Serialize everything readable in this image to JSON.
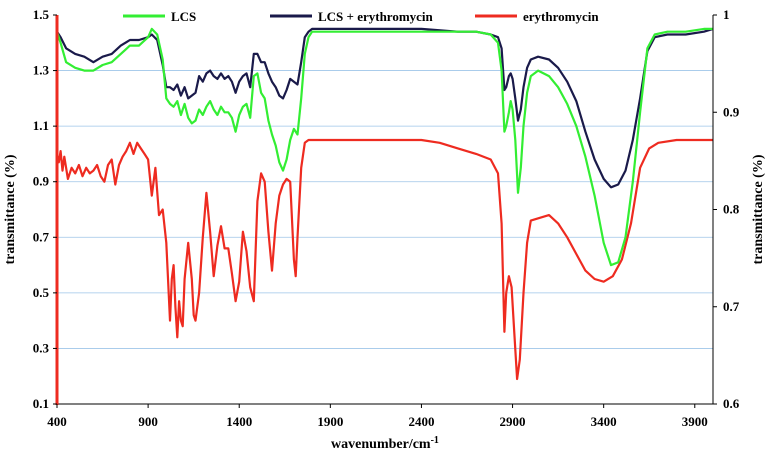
{
  "chart_data": {
    "type": "line",
    "xlabel": "wavenumber/cm",
    "xlabel_sup": "-1",
    "ylabel_left": "transmittance (%)",
    "ylabel_right": "transmittance (%)",
    "xlim": [
      400,
      4000
    ],
    "ylim_left": [
      0.1,
      1.5
    ],
    "ylim_right": [
      0.6,
      1.0
    ],
    "x_ticks": [
      "400",
      "900",
      "1400",
      "1900",
      "2400",
      "2900",
      "3400",
      "3900"
    ],
    "y_left_ticks": [
      "1.5",
      "1.3",
      "1.1",
      "0.9",
      "0.7",
      "0.5",
      "0.3",
      "0.1"
    ],
    "y_right_ticks": [
      "1",
      "0.9",
      "0.8",
      "0.7",
      "0.6"
    ],
    "grid": "horizontal",
    "legend_position": "top",
    "series": [
      {
        "name": "LCS",
        "color": "#33ee33",
        "axis": "left",
        "points": [
          [
            400,
            1.44
          ],
          [
            420,
            1.4
          ],
          [
            450,
            1.33
          ],
          [
            500,
            1.31
          ],
          [
            550,
            1.3
          ],
          [
            600,
            1.3
          ],
          [
            650,
            1.32
          ],
          [
            700,
            1.33
          ],
          [
            750,
            1.36
          ],
          [
            800,
            1.39
          ],
          [
            850,
            1.39
          ],
          [
            900,
            1.42
          ],
          [
            920,
            1.45
          ],
          [
            950,
            1.43
          ],
          [
            980,
            1.34
          ],
          [
            1000,
            1.2
          ],
          [
            1020,
            1.18
          ],
          [
            1040,
            1.17
          ],
          [
            1060,
            1.19
          ],
          [
            1080,
            1.14
          ],
          [
            1100,
            1.18
          ],
          [
            1120,
            1.13
          ],
          [
            1140,
            1.11
          ],
          [
            1160,
            1.12
          ],
          [
            1180,
            1.16
          ],
          [
            1200,
            1.14
          ],
          [
            1220,
            1.17
          ],
          [
            1240,
            1.19
          ],
          [
            1260,
            1.16
          ],
          [
            1280,
            1.14
          ],
          [
            1300,
            1.17
          ],
          [
            1320,
            1.15
          ],
          [
            1340,
            1.15
          ],
          [
            1360,
            1.13
          ],
          [
            1380,
            1.08
          ],
          [
            1400,
            1.14
          ],
          [
            1420,
            1.17
          ],
          [
            1440,
            1.18
          ],
          [
            1460,
            1.13
          ],
          [
            1480,
            1.28
          ],
          [
            1500,
            1.29
          ],
          [
            1520,
            1.22
          ],
          [
            1540,
            1.2
          ],
          [
            1560,
            1.12
          ],
          [
            1580,
            1.07
          ],
          [
            1600,
            1.03
          ],
          [
            1620,
            0.97
          ],
          [
            1640,
            0.94
          ],
          [
            1660,
            0.98
          ],
          [
            1680,
            1.05
          ],
          [
            1700,
            1.09
          ],
          [
            1720,
            1.07
          ],
          [
            1740,
            1.2
          ],
          [
            1760,
            1.36
          ],
          [
            1780,
            1.42
          ],
          [
            1800,
            1.44
          ],
          [
            1900,
            1.44
          ],
          [
            2000,
            1.44
          ],
          [
            2200,
            1.44
          ],
          [
            2400,
            1.44
          ],
          [
            2600,
            1.44
          ],
          [
            2700,
            1.44
          ],
          [
            2780,
            1.43
          ],
          [
            2820,
            1.4
          ],
          [
            2840,
            1.3
          ],
          [
            2855,
            1.08
          ],
          [
            2865,
            1.1
          ],
          [
            2880,
            1.15
          ],
          [
            2890,
            1.19
          ],
          [
            2900,
            1.16
          ],
          [
            2915,
            1.05
          ],
          [
            2930,
            0.86
          ],
          [
            2945,
            0.95
          ],
          [
            2960,
            1.1
          ],
          [
            2980,
            1.22
          ],
          [
            3000,
            1.28
          ],
          [
            3040,
            1.3
          ],
          [
            3100,
            1.28
          ],
          [
            3150,
            1.24
          ],
          [
            3200,
            1.18
          ],
          [
            3250,
            1.1
          ],
          [
            3300,
            0.99
          ],
          [
            3350,
            0.85
          ],
          [
            3400,
            0.68
          ],
          [
            3440,
            0.6
          ],
          [
            3480,
            0.61
          ],
          [
            3520,
            0.7
          ],
          [
            3560,
            0.9
          ],
          [
            3600,
            1.15
          ],
          [
            3640,
            1.38
          ],
          [
            3680,
            1.43
          ],
          [
            3750,
            1.44
          ],
          [
            3850,
            1.44
          ],
          [
            3950,
            1.45
          ],
          [
            4000,
            1.45
          ]
        ]
      },
      {
        "name": "LCS +  erythromycin",
        "color": "#1a1a4a",
        "axis": "left",
        "points": [
          [
            400,
            1.44
          ],
          [
            420,
            1.42
          ],
          [
            450,
            1.38
          ],
          [
            500,
            1.36
          ],
          [
            550,
            1.35
          ],
          [
            600,
            1.33
          ],
          [
            650,
            1.35
          ],
          [
            700,
            1.36
          ],
          [
            750,
            1.39
          ],
          [
            800,
            1.41
          ],
          [
            850,
            1.41
          ],
          [
            900,
            1.42
          ],
          [
            920,
            1.43
          ],
          [
            950,
            1.41
          ],
          [
            980,
            1.32
          ],
          [
            1000,
            1.24
          ],
          [
            1020,
            1.24
          ],
          [
            1040,
            1.23
          ],
          [
            1060,
            1.25
          ],
          [
            1080,
            1.21
          ],
          [
            1100,
            1.24
          ],
          [
            1120,
            1.2
          ],
          [
            1140,
            1.21
          ],
          [
            1160,
            1.22
          ],
          [
            1180,
            1.28
          ],
          [
            1200,
            1.26
          ],
          [
            1220,
            1.29
          ],
          [
            1240,
            1.3
          ],
          [
            1260,
            1.28
          ],
          [
            1280,
            1.27
          ],
          [
            1300,
            1.29
          ],
          [
            1320,
            1.27
          ],
          [
            1340,
            1.28
          ],
          [
            1360,
            1.26
          ],
          [
            1380,
            1.22
          ],
          [
            1400,
            1.26
          ],
          [
            1420,
            1.28
          ],
          [
            1440,
            1.29
          ],
          [
            1460,
            1.24
          ],
          [
            1480,
            1.36
          ],
          [
            1500,
            1.36
          ],
          [
            1520,
            1.33
          ],
          [
            1540,
            1.33
          ],
          [
            1560,
            1.29
          ],
          [
            1580,
            1.26
          ],
          [
            1600,
            1.24
          ],
          [
            1620,
            1.21
          ],
          [
            1640,
            1.2
          ],
          [
            1660,
            1.23
          ],
          [
            1680,
            1.27
          ],
          [
            1700,
            1.26
          ],
          [
            1720,
            1.25
          ],
          [
            1740,
            1.33
          ],
          [
            1760,
            1.42
          ],
          [
            1780,
            1.44
          ],
          [
            1800,
            1.45
          ],
          [
            1900,
            1.45
          ],
          [
            2000,
            1.45
          ],
          [
            2200,
            1.45
          ],
          [
            2400,
            1.45
          ],
          [
            2600,
            1.44
          ],
          [
            2700,
            1.44
          ],
          [
            2780,
            1.43
          ],
          [
            2820,
            1.42
          ],
          [
            2840,
            1.38
          ],
          [
            2855,
            1.23
          ],
          [
            2865,
            1.24
          ],
          [
            2880,
            1.28
          ],
          [
            2890,
            1.29
          ],
          [
            2900,
            1.27
          ],
          [
            2915,
            1.2
          ],
          [
            2930,
            1.12
          ],
          [
            2945,
            1.16
          ],
          [
            2960,
            1.24
          ],
          [
            2980,
            1.31
          ],
          [
            3000,
            1.34
          ],
          [
            3040,
            1.35
          ],
          [
            3100,
            1.34
          ],
          [
            3150,
            1.31
          ],
          [
            3200,
            1.26
          ],
          [
            3250,
            1.19
          ],
          [
            3300,
            1.08
          ],
          [
            3350,
            0.98
          ],
          [
            3400,
            0.91
          ],
          [
            3440,
            0.88
          ],
          [
            3480,
            0.89
          ],
          [
            3520,
            0.94
          ],
          [
            3560,
            1.05
          ],
          [
            3600,
            1.2
          ],
          [
            3640,
            1.37
          ],
          [
            3680,
            1.42
          ],
          [
            3750,
            1.43
          ],
          [
            3850,
            1.43
          ],
          [
            3950,
            1.44
          ],
          [
            4000,
            1.45
          ]
        ]
      },
      {
        "name": "erythromycin",
        "color": "#ee2b20",
        "axis": "left",
        "points": [
          [
            400,
            1.0
          ],
          [
            410,
            0.97
          ],
          [
            420,
            1.01
          ],
          [
            430,
            0.94
          ],
          [
            440,
            0.99
          ],
          [
            460,
            0.91
          ],
          [
            480,
            0.95
          ],
          [
            500,
            0.93
          ],
          [
            520,
            0.96
          ],
          [
            540,
            0.92
          ],
          [
            560,
            0.95
          ],
          [
            580,
            0.93
          ],
          [
            600,
            0.94
          ],
          [
            620,
            0.96
          ],
          [
            640,
            0.92
          ],
          [
            660,
            0.9
          ],
          [
            680,
            0.96
          ],
          [
            700,
            0.98
          ],
          [
            720,
            0.89
          ],
          [
            740,
            0.96
          ],
          [
            760,
            0.99
          ],
          [
            780,
            1.01
          ],
          [
            800,
            1.04
          ],
          [
            820,
            1.0
          ],
          [
            840,
            1.04
          ],
          [
            860,
            1.02
          ],
          [
            880,
            1.0
          ],
          [
            900,
            0.98
          ],
          [
            920,
            0.85
          ],
          [
            940,
            0.95
          ],
          [
            960,
            0.78
          ],
          [
            980,
            0.8
          ],
          [
            1000,
            0.68
          ],
          [
            1020,
            0.4
          ],
          [
            1030,
            0.55
          ],
          [
            1040,
            0.6
          ],
          [
            1050,
            0.45
          ],
          [
            1060,
            0.34
          ],
          [
            1070,
            0.47
          ],
          [
            1080,
            0.4
          ],
          [
            1090,
            0.38
          ],
          [
            1100,
            0.55
          ],
          [
            1120,
            0.68
          ],
          [
            1140,
            0.55
          ],
          [
            1150,
            0.42
          ],
          [
            1160,
            0.4
          ],
          [
            1180,
            0.5
          ],
          [
            1200,
            0.7
          ],
          [
            1220,
            0.86
          ],
          [
            1240,
            0.72
          ],
          [
            1260,
            0.56
          ],
          [
            1280,
            0.67
          ],
          [
            1300,
            0.74
          ],
          [
            1320,
            0.66
          ],
          [
            1340,
            0.66
          ],
          [
            1360,
            0.57
          ],
          [
            1380,
            0.47
          ],
          [
            1400,
            0.54
          ],
          [
            1420,
            0.72
          ],
          [
            1440,
            0.65
          ],
          [
            1460,
            0.52
          ],
          [
            1480,
            0.47
          ],
          [
            1500,
            0.83
          ],
          [
            1520,
            0.93
          ],
          [
            1540,
            0.9
          ],
          [
            1560,
            0.72
          ],
          [
            1580,
            0.58
          ],
          [
            1600,
            0.75
          ],
          [
            1620,
            0.85
          ],
          [
            1640,
            0.89
          ],
          [
            1660,
            0.91
          ],
          [
            1680,
            0.9
          ],
          [
            1700,
            0.62
          ],
          [
            1710,
            0.56
          ],
          [
            1720,
            0.7
          ],
          [
            1740,
            0.95
          ],
          [
            1760,
            1.04
          ],
          [
            1780,
            1.05
          ],
          [
            1800,
            1.05
          ],
          [
            1900,
            1.05
          ],
          [
            2000,
            1.05
          ],
          [
            2200,
            1.05
          ],
          [
            2400,
            1.05
          ],
          [
            2500,
            1.04
          ],
          [
            2600,
            1.02
          ],
          [
            2700,
            1.0
          ],
          [
            2780,
            0.98
          ],
          [
            2820,
            0.93
          ],
          [
            2840,
            0.75
          ],
          [
            2855,
            0.36
          ],
          [
            2865,
            0.5
          ],
          [
            2880,
            0.56
          ],
          [
            2895,
            0.52
          ],
          [
            2910,
            0.35
          ],
          [
            2925,
            0.19
          ],
          [
            2940,
            0.26
          ],
          [
            2960,
            0.5
          ],
          [
            2980,
            0.68
          ],
          [
            3000,
            0.76
          ],
          [
            3050,
            0.77
          ],
          [
            3100,
            0.78
          ],
          [
            3150,
            0.75
          ],
          [
            3200,
            0.7
          ],
          [
            3250,
            0.64
          ],
          [
            3300,
            0.58
          ],
          [
            3350,
            0.55
          ],
          [
            3400,
            0.54
          ],
          [
            3450,
            0.56
          ],
          [
            3500,
            0.62
          ],
          [
            3550,
            0.75
          ],
          [
            3600,
            0.95
          ],
          [
            3650,
            1.02
          ],
          [
            3700,
            1.04
          ],
          [
            3800,
            1.05
          ],
          [
            3900,
            1.05
          ],
          [
            4000,
            1.05
          ]
        ]
      }
    ]
  }
}
